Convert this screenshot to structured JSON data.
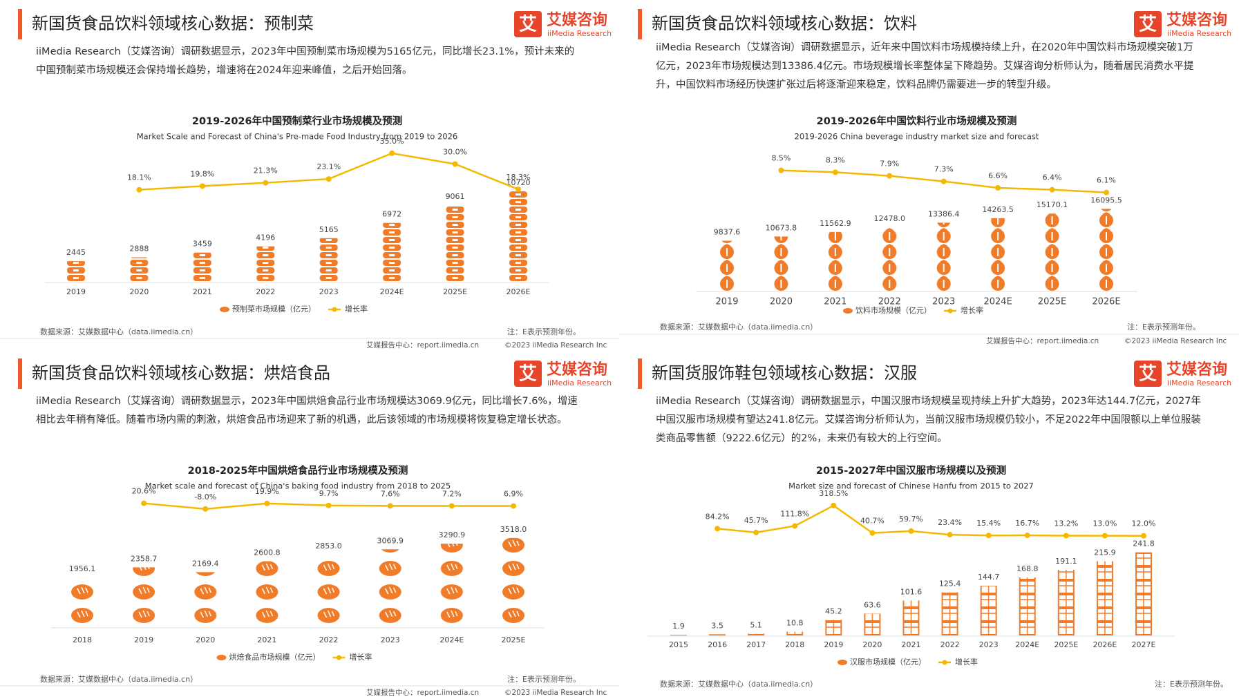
{
  "logo": {
    "icon": "艾",
    "name": "艾媒咨询",
    "sub": "iiMedia Research"
  },
  "footer": {
    "center": "艾媒报告中心：report.iimedia.cn",
    "copyright": "©2023  iiMedia Research Inc"
  },
  "chart_data": [
    {
      "type": "bar",
      "heading": "新国货食品饮料领域核心数据：预制菜",
      "description": "iiMedia Research（艾媒咨询）调研数据显示，2023年中国预制菜市场规模为5165亿元，同比增长23.1%，预计未来的中国预制菜市场规模还会保持增长趋势，增速将在2024年迎来峰值，之后开始回落。",
      "title": "2019-2026年中国预制菜行业市场规模及预测",
      "subtitle": "Market Scale and Forecast of China's Pre-made Food Industry from 2019 to 2026",
      "categories": [
        "2019",
        "2020",
        "2021",
        "2022",
        "2023",
        "2024E",
        "2025E",
        "2026E"
      ],
      "series": [
        {
          "name": "预制菜市场规模（亿元）",
          "color": "#f07c2a",
          "values": [
            2445,
            2888,
            3459,
            4196,
            5165,
            6972,
            9061,
            10720
          ]
        },
        {
          "name": "增长率",
          "color": "#f5b800",
          "type": "line",
          "axis": "y2",
          "values": [
            null,
            18.1,
            19.8,
            21.3,
            23.1,
            35.0,
            30.0,
            18.3
          ],
          "value_labels": [
            null,
            "18.1%",
            "19.8%",
            "21.3%",
            "23.1%",
            "35.0%",
            "30.0%",
            "18.3%"
          ]
        }
      ],
      "ylim": [
        0,
        17000
      ],
      "y2lim": [
        10,
        42
      ],
      "source": "数据来源：艾媒数据中心（data.iimedia.cn）",
      "note": "注：E表示预测年份。",
      "show_footer": true
    },
    {
      "type": "bar",
      "heading": "新国货食品饮料领域核心数据：饮料",
      "description": "iiMedia Research（艾媒咨询）调研数据显示，近年来中国饮料市场规模持续上升，在2020年中国饮料市场规模突破1万亿元，2023年市场规模达到13386.4亿元。市场规模增长率整体呈下降趋势。艾媒咨询分析师认为，随着居民消费水平提升，中国饮料市场经历快速扩张过后将逐渐迎来稳定，饮料品牌仍需要进一步的转型升级。",
      "title": "2019-2026年中国饮料行业市场规模及预测",
      "subtitle": "2019-2026 China beverage industry market size and forecast",
      "categories": [
        "2019",
        "2020",
        "2021",
        "2022",
        "2023",
        "2024E",
        "2025E",
        "2026E"
      ],
      "series": [
        {
          "name": "饮料市场规模（亿元）",
          "color": "#f07c2a",
          "values": [
            9837.6,
            10673.8,
            11562.9,
            12478.0,
            13386.4,
            14263.5,
            15170.1,
            16095.5
          ],
          "value_labels": [
            "9837.6",
            "10673.8",
            "11562.9",
            "12478.0",
            "13386.4",
            "14263.5",
            "15170.1",
            "16095.5"
          ]
        },
        {
          "name": "增长率",
          "color": "#f5b800",
          "type": "line",
          "axis": "y2",
          "values": [
            null,
            8.5,
            8.3,
            7.9,
            7.3,
            6.6,
            6.4,
            6.1
          ],
          "value_labels": [
            null,
            "8.5%",
            "8.3%",
            "7.9%",
            "7.3%",
            "6.6%",
            "6.4%",
            "6.1%"
          ]
        }
      ],
      "ylim": [
        0,
        30000
      ],
      "y2lim": [
        4.5,
        12
      ],
      "source": "数据来源：艾媒数据中心（data.iimedia.cn）",
      "note": "注：E表示预测年份。",
      "show_footer": true
    },
    {
      "type": "bar",
      "heading": "新国货食品饮料领域核心数据：烘焙食品",
      "description": "iiMedia Research（艾媒咨询）调研数据显示，2023年中国烘焙食品行业市场规模达3069.9亿元，同比增长7.6%，增速相比去年稍有降低。随着市场内需的刺激，烘焙食品市场迎来了新的机遇，此后该领域的市场规模将恢复稳定增长状态。",
      "title": "2018-2025年中国烘焙食品行业市场规模及预测",
      "subtitle": "Market scale and forecast of China's baking food industry from 2018 to 2025",
      "categories": [
        "2018",
        "2019",
        "2020",
        "2021",
        "2022",
        "2023",
        "2024E",
        "2025E"
      ],
      "series": [
        {
          "name": "烘焙食品市场规模（亿元）",
          "color": "#f07c2a",
          "values": [
            1956.1,
            2358.7,
            2169.4,
            2600.8,
            2853.0,
            3069.9,
            3290.9,
            3518.0
          ],
          "value_labels": [
            "1956.1",
            "2358.7",
            "2169.4",
            "2600.8",
            "2853.0",
            "3069.9",
            "3290.9",
            "3518.0"
          ]
        },
        {
          "name": "增长率",
          "color": "#f5b800",
          "type": "line",
          "axis": "y2",
          "values": [
            null,
            20.6,
            -8.0,
            19.9,
            9.7,
            7.6,
            7.2,
            6.9
          ],
          "value_labels": [
            null,
            "20.6%",
            "-8.0%",
            "19.9%",
            "9.7%",
            "7.6%",
            "7.2%",
            "6.9%"
          ]
        }
      ],
      "ylim": [
        0,
        5500
      ],
      "y2lim": [
        -250,
        100
      ],
      "source": "数据来源：艾媒数据中心（data.iimedia.cn）",
      "note": "注：E表示预测年份。",
      "show_footer": true
    },
    {
      "type": "bar",
      "heading": "新国货服饰鞋包领域核心数据：汉服",
      "description": "iiMedia Research（艾媒咨询）调研数据显示，中国汉服市场规模呈现持续上升扩大趋势，2023年达144.7亿元，2027年中国汉服市场规模有望达241.8亿元。艾媒咨询分析师认为，当前汉服市场规模仍较小，不足2022年中国限额以上单位服装类商品零售额（9222.6亿元）的2%，未来仍有较大的上行空间。",
      "title": "2015-2027年中国汉服市场规模以及预测",
      "subtitle": "Market size and forecast of Chinese Hanfu from 2015 to 2027",
      "categories": [
        "2015",
        "2016",
        "2017",
        "2018",
        "2019",
        "2020",
        "2021",
        "2022",
        "2023",
        "2024E",
        "2025E",
        "2026E",
        "2027E"
      ],
      "series": [
        {
          "name": "汉服市场规模（亿元）",
          "color": "#f07c2a",
          "values": [
            1.9,
            3.5,
            5.1,
            10.8,
            45.2,
            63.6,
            101.6,
            125.4,
            144.7,
            168.8,
            191.1,
            215.9,
            241.8
          ]
        },
        {
          "name": "增长率",
          "color": "#f5b800",
          "type": "line",
          "axis": "y2",
          "values": [
            null,
            84.2,
            45.7,
            111.8,
            318.5,
            40.7,
            59.7,
            23.4,
            15.4,
            16.7,
            13.2,
            13.0,
            12.0
          ],
          "value_labels": [
            null,
            "84.2%",
            "45.7%",
            "111.8%",
            "318.5%",
            "40.7%",
            "59.7%",
            "23.4%",
            "15.4%",
            "16.7%",
            "13.2%",
            "13.0%",
            "12.0%"
          ]
        }
      ],
      "ylim": [
        0,
        430
      ],
      "y2lim": [
        -200,
        500
      ],
      "source": "数据来源：艾媒数据中心（data.iimedia.cn）",
      "note": "注：E表示预测年份。",
      "show_footer": false
    }
  ]
}
